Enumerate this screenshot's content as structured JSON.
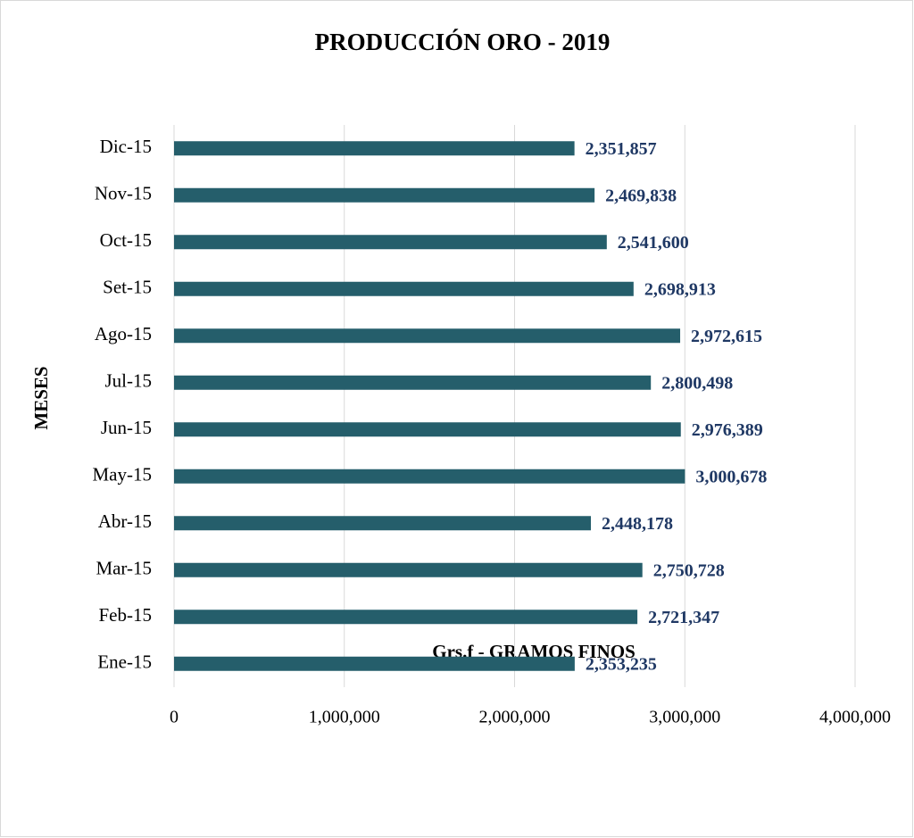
{
  "chart_data": {
    "type": "bar",
    "orientation": "horizontal",
    "title": "PRODUCCIÓN ORO - 2019",
    "x_label": "Grs.f - GRAMOS FINOS",
    "y_label": "MESES",
    "categories": [
      "Ene-15",
      "Feb-15",
      "Mar-15",
      "Abr-15",
      "May-15",
      "Jun-15",
      "Jul-15",
      "Ago-15",
      "Set-15",
      "Oct-15",
      "Nov-15",
      "Dic-15"
    ],
    "values": [
      2353235,
      2721347,
      2750728,
      2448178,
      3000678,
      2976389,
      2800498,
      2972615,
      2698913,
      2541600,
      2469838,
      2351857
    ],
    "value_labels": [
      "2,353,235",
      "2,721,347",
      "2,750,728",
      "2,448,178",
      "3,000,678",
      "2,976,389",
      "2,800,498",
      "2,972,615",
      "2,698,913",
      "2,541,600",
      "2,469,838",
      "2,351,857"
    ],
    "color": "#255e6b",
    "label_color": "#1f3864",
    "xlim": [
      0,
      4000000
    ],
    "xticks": [
      0,
      {
        "value": 1000000,
        "label": "1,000,000"
      },
      {
        "value": 2000000,
        "label": "2,000,000"
      },
      {
        "value": 3000000,
        "label": "3,000,000"
      },
      {
        "value": 4000000,
        "label": "4,000,000"
      }
    ],
    "grid": true
  }
}
